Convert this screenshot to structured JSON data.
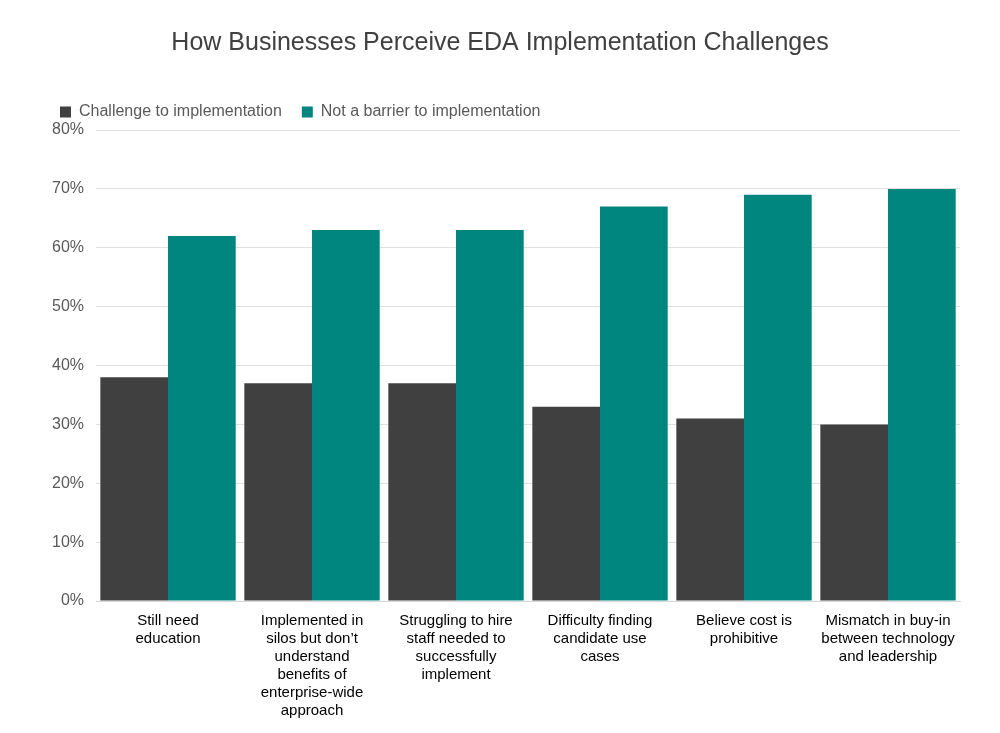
{
  "chart_data": {
    "type": "bar",
    "title": "How Businesses Perceive EDA Implementation Challenges",
    "categories": [
      "Still need education",
      "Implemented in silos but don’t understand benefits of enterprise-wide approach",
      "Struggling to hire staff needed to successfully implement",
      "Difficulty finding candidate use cases",
      "Believe cost is prohibitive",
      "Mismatch in buy-in between technology and leadership"
    ],
    "series": [
      {
        "name": "Challenge to implementation",
        "color": "#404040",
        "values": [
          38,
          37,
          37,
          33,
          31,
          30
        ]
      },
      {
        "name": "Not a barrier to implementation",
        "color": "#00857f",
        "values": [
          62,
          63,
          63,
          67,
          69,
          70
        ]
      }
    ],
    "ylim": [
      0,
      80
    ],
    "yticks": [
      {
        "value": 0,
        "label": "0%"
      },
      {
        "value": 10,
        "label": "10%"
      },
      {
        "value": 20,
        "label": "20%"
      },
      {
        "value": 30,
        "label": "30%"
      },
      {
        "value": 40,
        "label": "40%"
      },
      {
        "value": 50,
        "label": "50%"
      },
      {
        "value": 60,
        "label": "60%"
      },
      {
        "value": 70,
        "label": "70%"
      },
      {
        "value": 80,
        "label": "80%"
      }
    ],
    "grid": true,
    "legend": "upper-left"
  }
}
